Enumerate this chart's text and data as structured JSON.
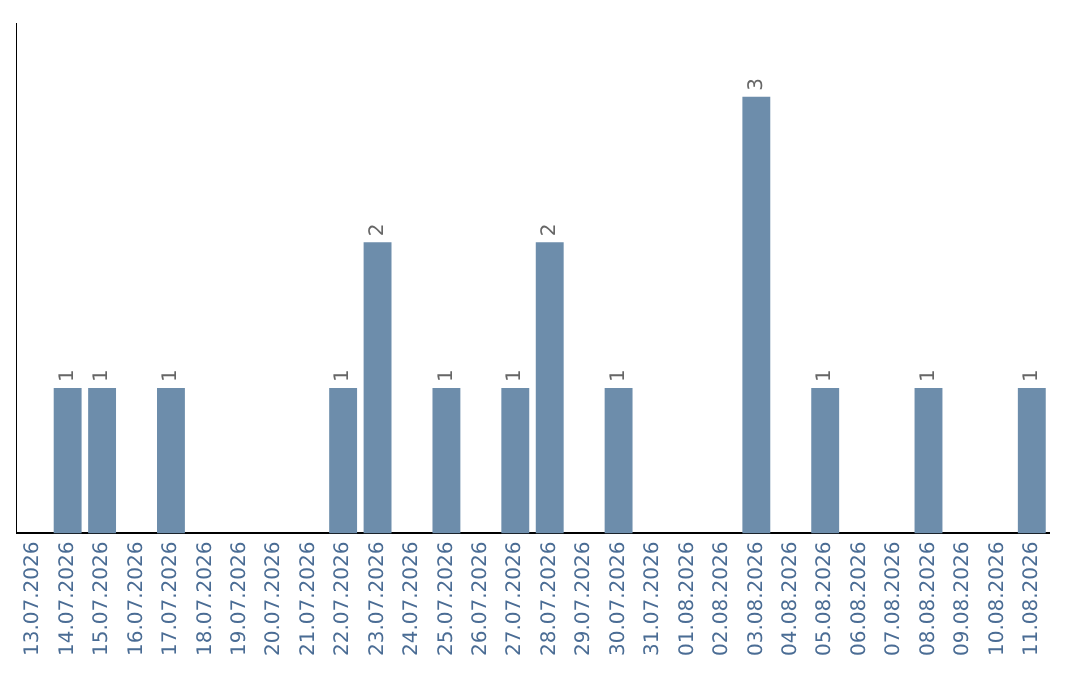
{
  "chart_data": {
    "type": "bar",
    "categories": [
      "13.07.2026",
      "14.07.2026",
      "15.07.2026",
      "16.07.2026",
      "17.07.2026",
      "18.07.2026",
      "19.07.2026",
      "20.07.2026",
      "21.07.2026",
      "22.07.2026",
      "23.07.2026",
      "24.07.2026",
      "25.07.2026",
      "26.07.2026",
      "27.07.2026",
      "28.07.2026",
      "29.07.2026",
      "30.07.2026",
      "31.07.2026",
      "01.08.2026",
      "02.08.2026",
      "03.08.2026",
      "04.08.2026",
      "05.08.2026",
      "06.08.2026",
      "07.08.2026",
      "08.08.2026",
      "09.08.2026",
      "10.08.2026",
      "11.08.2026"
    ],
    "values": [
      0,
      1,
      1,
      0,
      1,
      0,
      0,
      0,
      0,
      1,
      2,
      0,
      1,
      0,
      1,
      2,
      0,
      1,
      0,
      0,
      0,
      3,
      0,
      1,
      0,
      0,
      1,
      0,
      0,
      1
    ],
    "value_labels": [
      null,
      "1",
      "1",
      null,
      "1",
      null,
      null,
      null,
      null,
      "1",
      "2",
      null,
      "1",
      null,
      "1",
      "2",
      null,
      "1",
      null,
      null,
      null,
      "3",
      null,
      "1",
      null,
      null,
      "1",
      null,
      null,
      "1"
    ],
    "color": "#6d8dab",
    "tick_labels": "x",
    "grid": false,
    "legend": false
  }
}
